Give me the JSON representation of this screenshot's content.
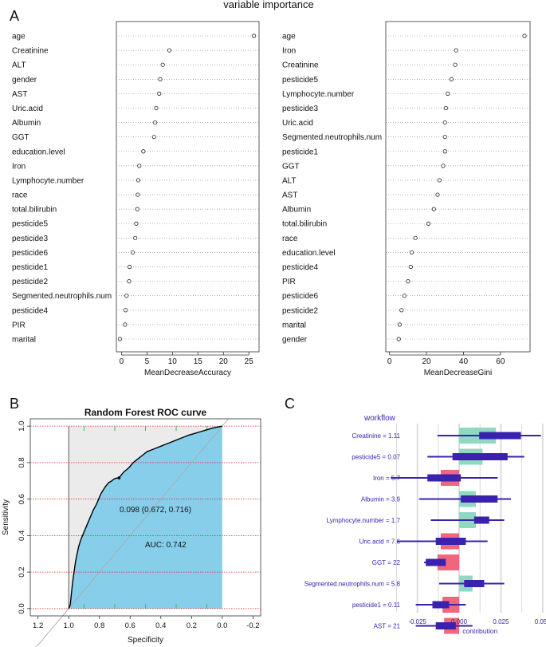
{
  "figure": {
    "title": "variable importance",
    "panel_labels": [
      "A",
      "B",
      "C"
    ]
  },
  "chart_data": [
    {
      "type": "scatter",
      "id": "accuracy",
      "xlabel": "MeanDecreaseAccuracy",
      "xlim": [
        -1,
        27
      ],
      "xticks": [
        0,
        5,
        10,
        15,
        20,
        25
      ],
      "categories": [
        "age",
        "Creatinine",
        "ALT",
        "gender",
        "AST",
        "Uric.acid",
        "Albumin",
        "GGT",
        "education.level",
        "Iron",
        "Lymphocyte.number",
        "race",
        "total.bilirubin",
        "pesticide5",
        "pesticide3",
        "pesticide6",
        "pesticide1",
        "pesticide2",
        "Segmented.neutrophils.num",
        "pesticide4",
        "PIR",
        "marital"
      ],
      "values": [
        26.0,
        9.4,
        8.1,
        7.6,
        7.4,
        6.8,
        6.6,
        6.4,
        4.3,
        3.5,
        3.3,
        3.2,
        3.1,
        2.9,
        2.7,
        2.2,
        1.6,
        1.5,
        1.0,
        0.8,
        0.7,
        -0.3
      ]
    },
    {
      "type": "scatter",
      "id": "gini",
      "xlabel": "MeanDecreaseGini",
      "xlim": [
        -2,
        76
      ],
      "xticks": [
        0,
        20,
        40,
        60
      ],
      "categories": [
        "age",
        "Iron",
        "Creatinine",
        "pesticide5",
        "Lymphocyte.number",
        "pesticide3",
        "Uric.acid",
        "Segmented.neutrophils.num",
        "pesticide1",
        "GGT",
        "ALT",
        "AST",
        "Albumin",
        "total.bilirubin",
        "race",
        "education.level",
        "pesticide4",
        "PIR",
        "pesticide6",
        "pesticide2",
        "marital",
        "gender"
      ],
      "values": [
        73.0,
        36.0,
        35.5,
        33.5,
        31.5,
        30.5,
        30.0,
        30.0,
        30.0,
        29.0,
        27.0,
        26.0,
        24.0,
        21.0,
        14.0,
        12.0,
        11.5,
        10.0,
        8.0,
        6.5,
        5.5,
        5.0
      ]
    },
    {
      "type": "line",
      "id": "roc",
      "title": "Random Forest ROC curve",
      "xlabel": "Specificity",
      "ylabel": "Sensitivity",
      "xlim": [
        1.25,
        -0.25
      ],
      "ylim": [
        -0.04,
        1.04
      ],
      "xticks": [
        "1.2",
        "1.0",
        "0.8",
        "0.6",
        "0.4",
        "0.2",
        "0.0",
        "-0.2"
      ],
      "yticks": [
        "0.0",
        "0.2",
        "0.4",
        "0.6",
        "0.8",
        "1.0"
      ],
      "x": [
        1.0,
        0.99,
        0.985,
        0.98,
        0.975,
        0.965,
        0.955,
        0.945,
        0.935,
        0.92,
        0.9,
        0.885,
        0.87,
        0.855,
        0.84,
        0.82,
        0.81,
        0.8,
        0.79,
        0.775,
        0.76,
        0.74,
        0.72,
        0.705,
        0.69,
        0.672,
        0.66,
        0.64,
        0.61,
        0.58,
        0.55,
        0.52,
        0.49,
        0.46,
        0.43,
        0.4,
        0.37,
        0.34,
        0.31,
        0.28,
        0.25,
        0.22,
        0.18,
        0.14,
        0.1,
        0.06,
        0.03,
        0.0
      ],
      "y": [
        0.0,
        0.02,
        0.06,
        0.1,
        0.14,
        0.2,
        0.26,
        0.3,
        0.34,
        0.38,
        0.42,
        0.45,
        0.48,
        0.51,
        0.54,
        0.57,
        0.59,
        0.61,
        0.63,
        0.65,
        0.67,
        0.69,
        0.7,
        0.71,
        0.715,
        0.716,
        0.73,
        0.75,
        0.77,
        0.8,
        0.82,
        0.84,
        0.86,
        0.87,
        0.88,
        0.89,
        0.9,
        0.91,
        0.92,
        0.93,
        0.94,
        0.95,
        0.96,
        0.97,
        0.98,
        0.99,
        0.995,
        1.0
      ],
      "annotations": [
        "0.098 (0.672, 0.716)",
        "AUC: 0.742"
      ],
      "colors": {
        "auc_fill": "#87CEEB",
        "upper_fill": "#EBEBEB",
        "grid": "#E8231F",
        "ticks": "#3DBD5B"
      }
    },
    {
      "type": "bar",
      "id": "contribution",
      "legend_title": "workflow",
      "xlabel": "contribution",
      "xlim": [
        -0.032,
        0.052
      ],
      "xticks": [
        -0.025,
        0.0,
        0.025,
        0.05
      ],
      "xtick_labels": [
        "-0.025",
        "0.000",
        "0.025",
        "0.050"
      ],
      "categories": [
        "Creatinine = 1.11",
        "pesticide5 = 0.07",
        "Iron = 5.7",
        "Albumin = 3.9",
        "Lymphocyte.number = 1.7",
        "Uric.acid = 7.6",
        "GGT = 22",
        "Segmented.neutrophils.num = 5.8",
        "pesticide1 = 0.11",
        "AST = 21"
      ],
      "values": [
        0.022,
        0.014,
        -0.011,
        0.01,
        0.01,
        -0.011,
        -0.013,
        0.008,
        -0.01,
        -0.009
      ],
      "box_low": [
        0.012,
        -0.004,
        -0.019,
        0.001,
        0.009,
        -0.014,
        -0.02,
        0.003,
        -0.016,
        -0.014
      ],
      "box_high": [
        0.037,
        0.029,
        0.001,
        0.023,
        0.018,
        0.004,
        -0.008,
        0.015,
        -0.006,
        -0.002
      ],
      "whisker_low": [
        -0.013,
        -0.019,
        -0.041,
        -0.024,
        -0.017,
        -0.037,
        -0.021,
        -0.012,
        -0.026,
        -0.026
      ],
      "whisker_high": [
        0.049,
        0.039,
        0.023,
        0.031,
        0.027,
        0.017,
        -0.009,
        0.027,
        0.004,
        0.008
      ],
      "colors": {
        "positive": "#8FD9C2",
        "negative": "#F0677D",
        "box": "#3B22AE",
        "text": "#3B22AE",
        "grid": "#D9D9D9"
      }
    }
  ]
}
